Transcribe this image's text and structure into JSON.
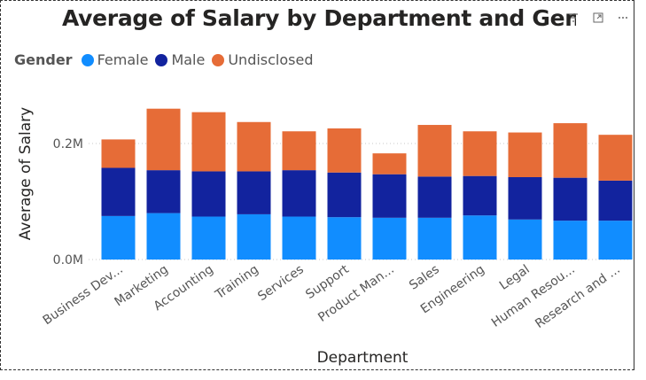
{
  "header": {
    "title": "Average of Salary by Department and Gende.",
    "icons": [
      "filter-icon",
      "focus-mode-icon",
      "more-options-icon"
    ]
  },
  "legend": {
    "title": "Gender",
    "items": [
      {
        "label": "Female",
        "color": "#118DFF"
      },
      {
        "label": "Male",
        "color": "#12239E"
      },
      {
        "label": "Undisclosed",
        "color": "#E66C37"
      }
    ]
  },
  "chart_data": {
    "type": "bar",
    "stacked": true,
    "categories": [
      "Business Dev...",
      "Marketing",
      "Accounting",
      "Training",
      "Services",
      "Support",
      "Product Man...",
      "Sales",
      "Engineering",
      "Legal",
      "Human Resou...",
      "Research and ..."
    ],
    "series": [
      {
        "name": "Female",
        "color": "#118DFF",
        "values": [
          0.075,
          0.08,
          0.074,
          0.078,
          0.074,
          0.073,
          0.072,
          0.072,
          0.076,
          0.069,
          0.067,
          0.067
        ]
      },
      {
        "name": "Male",
        "color": "#12239E",
        "values": [
          0.083,
          0.074,
          0.078,
          0.074,
          0.08,
          0.077,
          0.075,
          0.071,
          0.068,
          0.073,
          0.074,
          0.069
        ]
      },
      {
        "name": "Undisclosed",
        "color": "#E66C37",
        "values": [
          0.049,
          0.106,
          0.102,
          0.085,
          0.067,
          0.076,
          0.036,
          0.089,
          0.077,
          0.077,
          0.094,
          0.079
        ]
      }
    ],
    "xlabel": "Department",
    "ylabel": "Average of Salary",
    "yticks": [
      {
        "value": 0,
        "label": "0.0M"
      },
      {
        "value": 0.2,
        "label": "0.2M"
      }
    ],
    "ylim": [
      0,
      0.27
    ],
    "grid": true
  }
}
